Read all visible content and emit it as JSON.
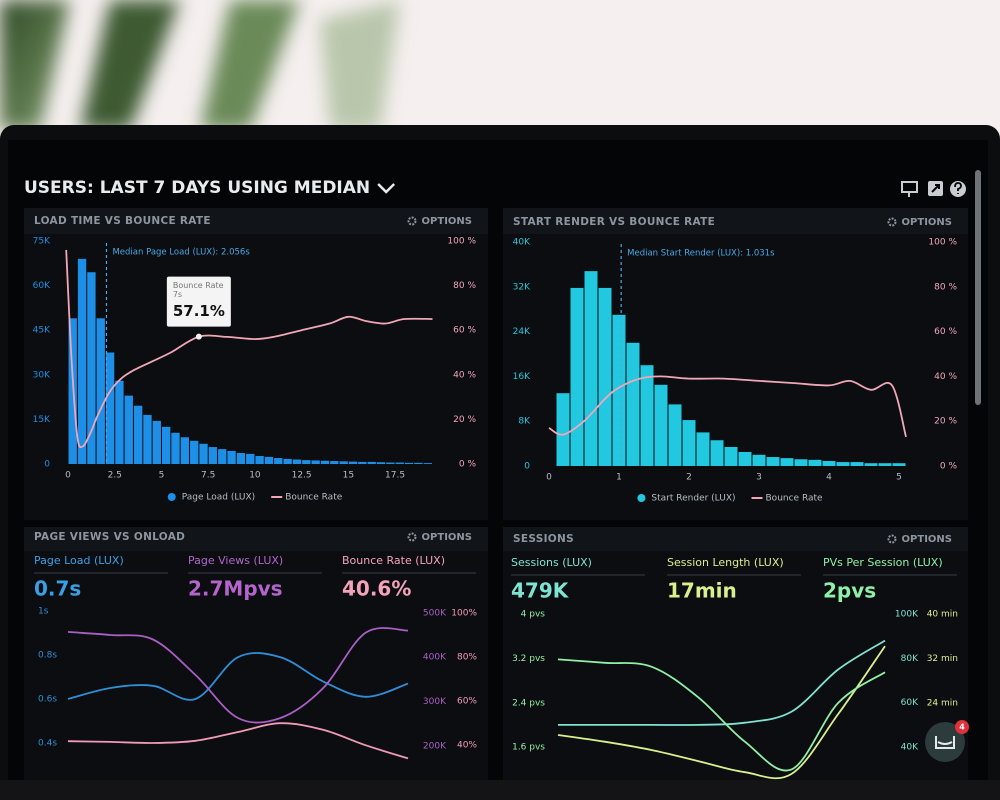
{
  "header": {
    "title": "USERS: LAST 7 DAYS USING MEDIAN"
  },
  "chat_widget": {
    "badge": 4
  },
  "chart_data": [
    {
      "type": "histogram",
      "title": "LOAD TIME VS BOUNCE RATE",
      "options": "OPTIONS",
      "bins": [
        0,
        0.5,
        1,
        1.5,
        2,
        2.5,
        3,
        3.5,
        4,
        4.5,
        5,
        5.5,
        6,
        6.5,
        7,
        7.5,
        8,
        8.5,
        9,
        9.5,
        10,
        10.5,
        11,
        11.5,
        12,
        12.5,
        13,
        13.5,
        14,
        14.5,
        15,
        15.5,
        16,
        16.5,
        17,
        17.5,
        18,
        18.5,
        19,
        19.5
      ],
      "xlim": [
        -0.5,
        20
      ],
      "xticks": [
        0,
        2.5,
        5,
        7.5,
        10,
        12.5,
        15,
        17.5
      ],
      "ylim": [
        0,
        75000
      ],
      "yticks": [
        0,
        {
          "value": 15000,
          "label": "15K"
        },
        {
          "value": 30000,
          "label": "30K"
        },
        {
          "value": 45000,
          "label": "45K"
        },
        {
          "value": 60000,
          "label": "60K"
        },
        {
          "value": 75000,
          "label": "75K"
        }
      ],
      "y2lim": [
        0,
        100
      ],
      "y2ticks": [
        {
          "value": 0,
          "label": "0 %"
        },
        {
          "value": 20,
          "label": "20 %"
        },
        {
          "value": 40,
          "label": "40 %"
        },
        {
          "value": 60,
          "label": "60 %"
        },
        {
          "value": 80,
          "label": "80 %"
        },
        {
          "value": 100,
          "label": "100 %"
        }
      ],
      "annotation": {
        "value": 2.056,
        "label": "Median Page Load (LUX): 2.056s"
      },
      "tooltip": {
        "title": "Bounce Rate",
        "x": {
          "value": 7,
          "label": "7s"
        },
        "value": {
          "value": 57.1,
          "label": "57.1%"
        }
      },
      "series": [
        {
          "name": "Page Load (LUX)",
          "color": "#1d8fe6",
          "values": [
            49000,
            69000,
            64500,
            49000,
            37500,
            28000,
            23000,
            19600,
            16500,
            14500,
            12500,
            10500,
            9000,
            7800,
            6800,
            5700,
            5000,
            4400,
            3700,
            3400,
            2700,
            2400,
            2000,
            1700,
            1500,
            1300,
            1200,
            1100,
            1000,
            900,
            800,
            700,
            700,
            600,
            500,
            500,
            400,
            400,
            300
          ]
        },
        {
          "name": "Bounce Rate",
          "color": "#f2a7b8",
          "axis": "y2",
          "x": [
            -0.1,
            0.2,
            0.5,
            0.8,
            1.2,
            1.6,
            2.2,
            2.8,
            3.5,
            4.5,
            5.5,
            7,
            8.5,
            10,
            11,
            12.5,
            14,
            15,
            16,
            17,
            18,
            19.5
          ],
          "values": [
            96,
            45,
            12,
            8,
            14,
            22,
            32,
            38,
            42,
            46,
            50,
            57.1,
            57,
            56,
            57,
            60,
            63,
            66,
            64,
            63,
            65,
            65
          ]
        }
      ]
    },
    {
      "type": "histogram",
      "title": "START RENDER VS BOUNCE RATE",
      "options": "OPTIONS",
      "bins": [
        0.1,
        0.3,
        0.5,
        0.7,
        0.9,
        1.1,
        1.3,
        1.5,
        1.7,
        1.9,
        2.1,
        2.3,
        2.5,
        2.7,
        2.9,
        3.1,
        3.3,
        3.5,
        3.7,
        3.9,
        4.1,
        4.3,
        4.5,
        4.7,
        4.9,
        5.1
      ],
      "xlim": [
        -0.1,
        5.3
      ],
      "xticks": [
        0,
        1,
        2,
        3,
        4,
        5
      ],
      "ylim": [
        0,
        40000
      ],
      "yticks": [
        0,
        {
          "value": 8000,
          "label": "8K"
        },
        {
          "value": 16000,
          "label": "16K"
        },
        {
          "value": 24000,
          "label": "24K"
        },
        {
          "value": 32000,
          "label": "32K"
        },
        {
          "value": 40000,
          "label": "40K"
        }
      ],
      "y2lim": [
        0,
        100
      ],
      "y2ticks": [
        {
          "value": 0,
          "label": "0 %"
        },
        {
          "value": 20,
          "label": "20 %"
        },
        {
          "value": 40,
          "label": "40 %"
        },
        {
          "value": 60,
          "label": "60 %"
        },
        {
          "value": 80,
          "label": "80 %"
        },
        {
          "value": 100,
          "label": "100 %"
        }
      ],
      "annotation": {
        "value": 1.031,
        "label": "Median Start Render (LUX): 1.031s"
      },
      "series": [
        {
          "name": "Start Render (LUX)",
          "color": "#22c8e0",
          "values": [
            13000,
            31800,
            34800,
            31800,
            27000,
            22000,
            18000,
            14500,
            11000,
            8200,
            6000,
            4600,
            3400,
            2500,
            2000,
            1600,
            1400,
            1200,
            1100,
            900,
            700,
            700,
            500,
            500,
            500
          ]
        },
        {
          "name": "Bounce Rate",
          "color": "#f2a7b8",
          "axis": "y2",
          "x": [
            0,
            0.2,
            0.5,
            0.8,
            1,
            1.3,
            1.6,
            2,
            2.5,
            3,
            3.5,
            4,
            4.3,
            4.6,
            4.9,
            5.1
          ],
          "values": [
            17,
            14,
            20,
            30,
            35,
            39,
            40,
            39,
            39,
            38,
            37,
            36,
            38,
            34,
            36,
            13
          ]
        }
      ]
    },
    {
      "type": "line",
      "title": "PAGE VIEWS VS ONLOAD",
      "options": "OPTIONS",
      "metrics": [
        {
          "label": "Page Load (LUX)",
          "value": "0.7s",
          "color": "#3aa0e6"
        },
        {
          "label": "Page Views (LUX)",
          "value": "2.7Mpvs",
          "color": "#b465cc"
        },
        {
          "label": "Bounce Rate (LUX)",
          "value": "40.6%",
          "color": "#f4a3bb"
        }
      ],
      "categories": [
        null,
        null,
        null,
        null,
        null,
        null,
        null,
        null,
        null
      ],
      "ylim": [
        0.3,
        1.05
      ],
      "yticks": [
        {
          "value": 0.4,
          "label": "0.4s"
        },
        {
          "value": 0.6,
          "label": "0.6s"
        },
        {
          "value": 0.8,
          "label": "0.8s"
        },
        {
          "value": 1,
          "label": "1s"
        }
      ],
      "y2lim": [
        157000,
        529000
      ],
      "y2ticks": [
        {
          "value": 200000,
          "label": "200K"
        },
        {
          "value": 300000,
          "label": "300K"
        },
        {
          "value": 400000,
          "label": "400K"
        },
        {
          "value": 500000,
          "label": "500K"
        }
      ],
      "y3lim": [
        31,
        106
      ],
      "y3ticks": [
        {
          "value": 40,
          "label": "40%"
        },
        {
          "value": 60,
          "label": "60%"
        },
        {
          "value": 80,
          "label": "80%"
        },
        {
          "value": 100,
          "label": "100%"
        }
      ],
      "series": [
        {
          "name": "Page Load (LUX)",
          "color": "#2f8fd6",
          "axis": "y",
          "values": [
            0.6,
            0.65,
            0.66,
            0.6,
            0.79,
            0.79,
            0.68,
            0.61,
            0.67
          ]
        },
        {
          "name": "Page Views (LUX)",
          "color": "#a95fc4",
          "axis": "y2",
          "values": [
            457000,
            450000,
            440000,
            360000,
            263000,
            263000,
            330000,
            455000,
            460000
          ]
        },
        {
          "name": "Bounce Rate (LUX)",
          "color": "#f29bb5",
          "axis": "y3",
          "values": [
            41.8,
            41.5,
            41,
            42,
            46,
            50,
            47,
            40,
            34
          ]
        }
      ]
    },
    {
      "type": "line",
      "title": "SESSIONS",
      "options": "OPTIONS",
      "metrics": [
        {
          "label": "Sessions (LUX)",
          "value": "479K",
          "color": "#7fe3d2"
        },
        {
          "label": "Session Length (LUX)",
          "value": "17min",
          "color": "#d9f08c"
        },
        {
          "label": "PVs Per Session (LUX)",
          "value": "2pvs",
          "color": "#8ff0a6"
        }
      ],
      "categories": [
        null,
        null,
        null,
        null,
        null,
        null,
        null,
        null
      ],
      "ylim": [
        1.1,
        4.25
      ],
      "yticks": [
        {
          "value": 1.6,
          "label": "1.6 pvs"
        },
        {
          "value": 2.4,
          "label": "2.4 pvs"
        },
        {
          "value": 3.2,
          "label": "3.2 pvs"
        },
        {
          "value": 4,
          "label": "4 pvs"
        }
      ],
      "y2lim": [
        27400,
        106300
      ],
      "y2ticks": [
        {
          "value": 40000,
          "label": "40K"
        },
        {
          "value": 60000,
          "label": "60K"
        },
        {
          "value": 80000,
          "label": "80K"
        },
        {
          "value": 100000,
          "label": "100K"
        }
      ],
      "y3lim": [
        11,
        42.5
      ],
      "y3ticks": [
        {
          "value": 24,
          "label": "24 min"
        },
        {
          "value": 32,
          "label": "32 min"
        },
        {
          "value": 40,
          "label": "40 min"
        }
      ],
      "series": [
        {
          "name": "Sessions (LUX)",
          "color": "#7fe3d2",
          "axis": "y2",
          "values": [
            50000,
            50000,
            50000,
            50000,
            51000,
            56000,
            75000,
            88000
          ]
        },
        {
          "name": "Session Length (LUX)",
          "color": "#d9f08c",
          "axis": "y3",
          "values": [
            18.2,
            17,
            15.5,
            13.5,
            11.5,
            11.2,
            22,
            34.2
          ]
        },
        {
          "name": "PVs Per Session (LUX)",
          "color": "#8ff0a6",
          "axis": "y",
          "values": [
            3.18,
            3.12,
            3.05,
            2.5,
            1.7,
            1.2,
            2.4,
            2.95
          ]
        }
      ]
    }
  ]
}
